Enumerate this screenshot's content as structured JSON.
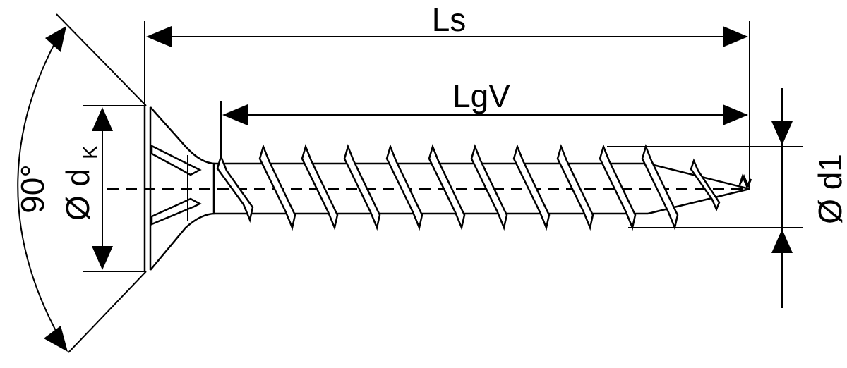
{
  "labels": {
    "overall_length": "Ls",
    "thread_length": "LgV",
    "countersink_angle": "90°",
    "head_diameter_symbol": "Ø d",
    "head_diameter_subscript": "K",
    "thread_diameter": "Ø d1"
  },
  "colors": {
    "line": "#000000",
    "background": "#ffffff"
  }
}
